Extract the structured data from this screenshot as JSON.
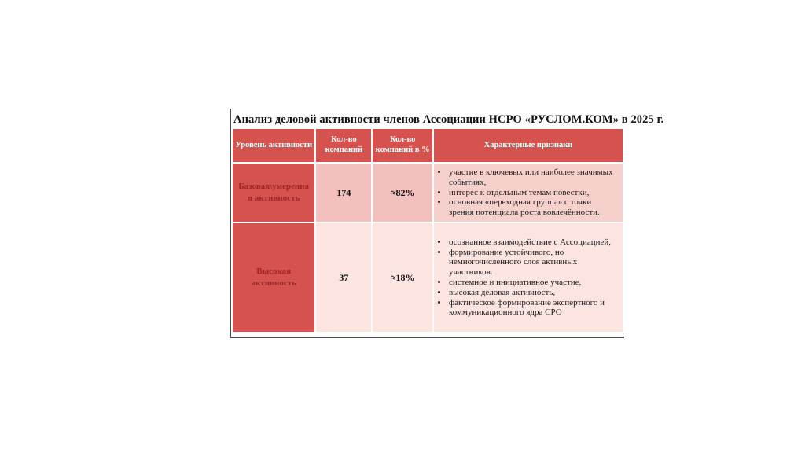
{
  "title": "Анализ деловой активности членов Ассоциации НСРО «РУСЛОМ.КОМ» в 2025 г.",
  "colors": {
    "accent_red": "#d6524e",
    "dark_red_text": "#9e2626",
    "row1_band": "#f2c0bd",
    "row1_features_band": "#f6d0cb",
    "row2_band": "#fce4e1",
    "frame_line": "#4f4f4f",
    "header_text": "#ffffff"
  },
  "table": {
    "headers": [
      "Уровень активности",
      "Кол-во компаний",
      "Кол-во компаний в %",
      "Характерные признаки"
    ],
    "rows": [
      {
        "level": "Базовая\\умеренная активность",
        "count": "174",
        "percent": "≈82%",
        "features": [
          "участие в ключевых или наиболее значимых событиях,",
          "интерес к отдельным темам повестки,",
          "основная «переходная группа» с точки зрения потенциала роста вовлечённости."
        ]
      },
      {
        "level": "Высокая активность",
        "count": "37",
        "percent": "≈18%",
        "features": [
          "осознанное взаимодействие с Ассоциацией,",
          "формирование устойчивого, но немногочисленного слоя активных участников.",
          "системное и инициативное участие,",
          "высокая деловая активность,",
          "фактическое формирование экспертного и коммуникационного ядра СРО"
        ]
      }
    ]
  }
}
